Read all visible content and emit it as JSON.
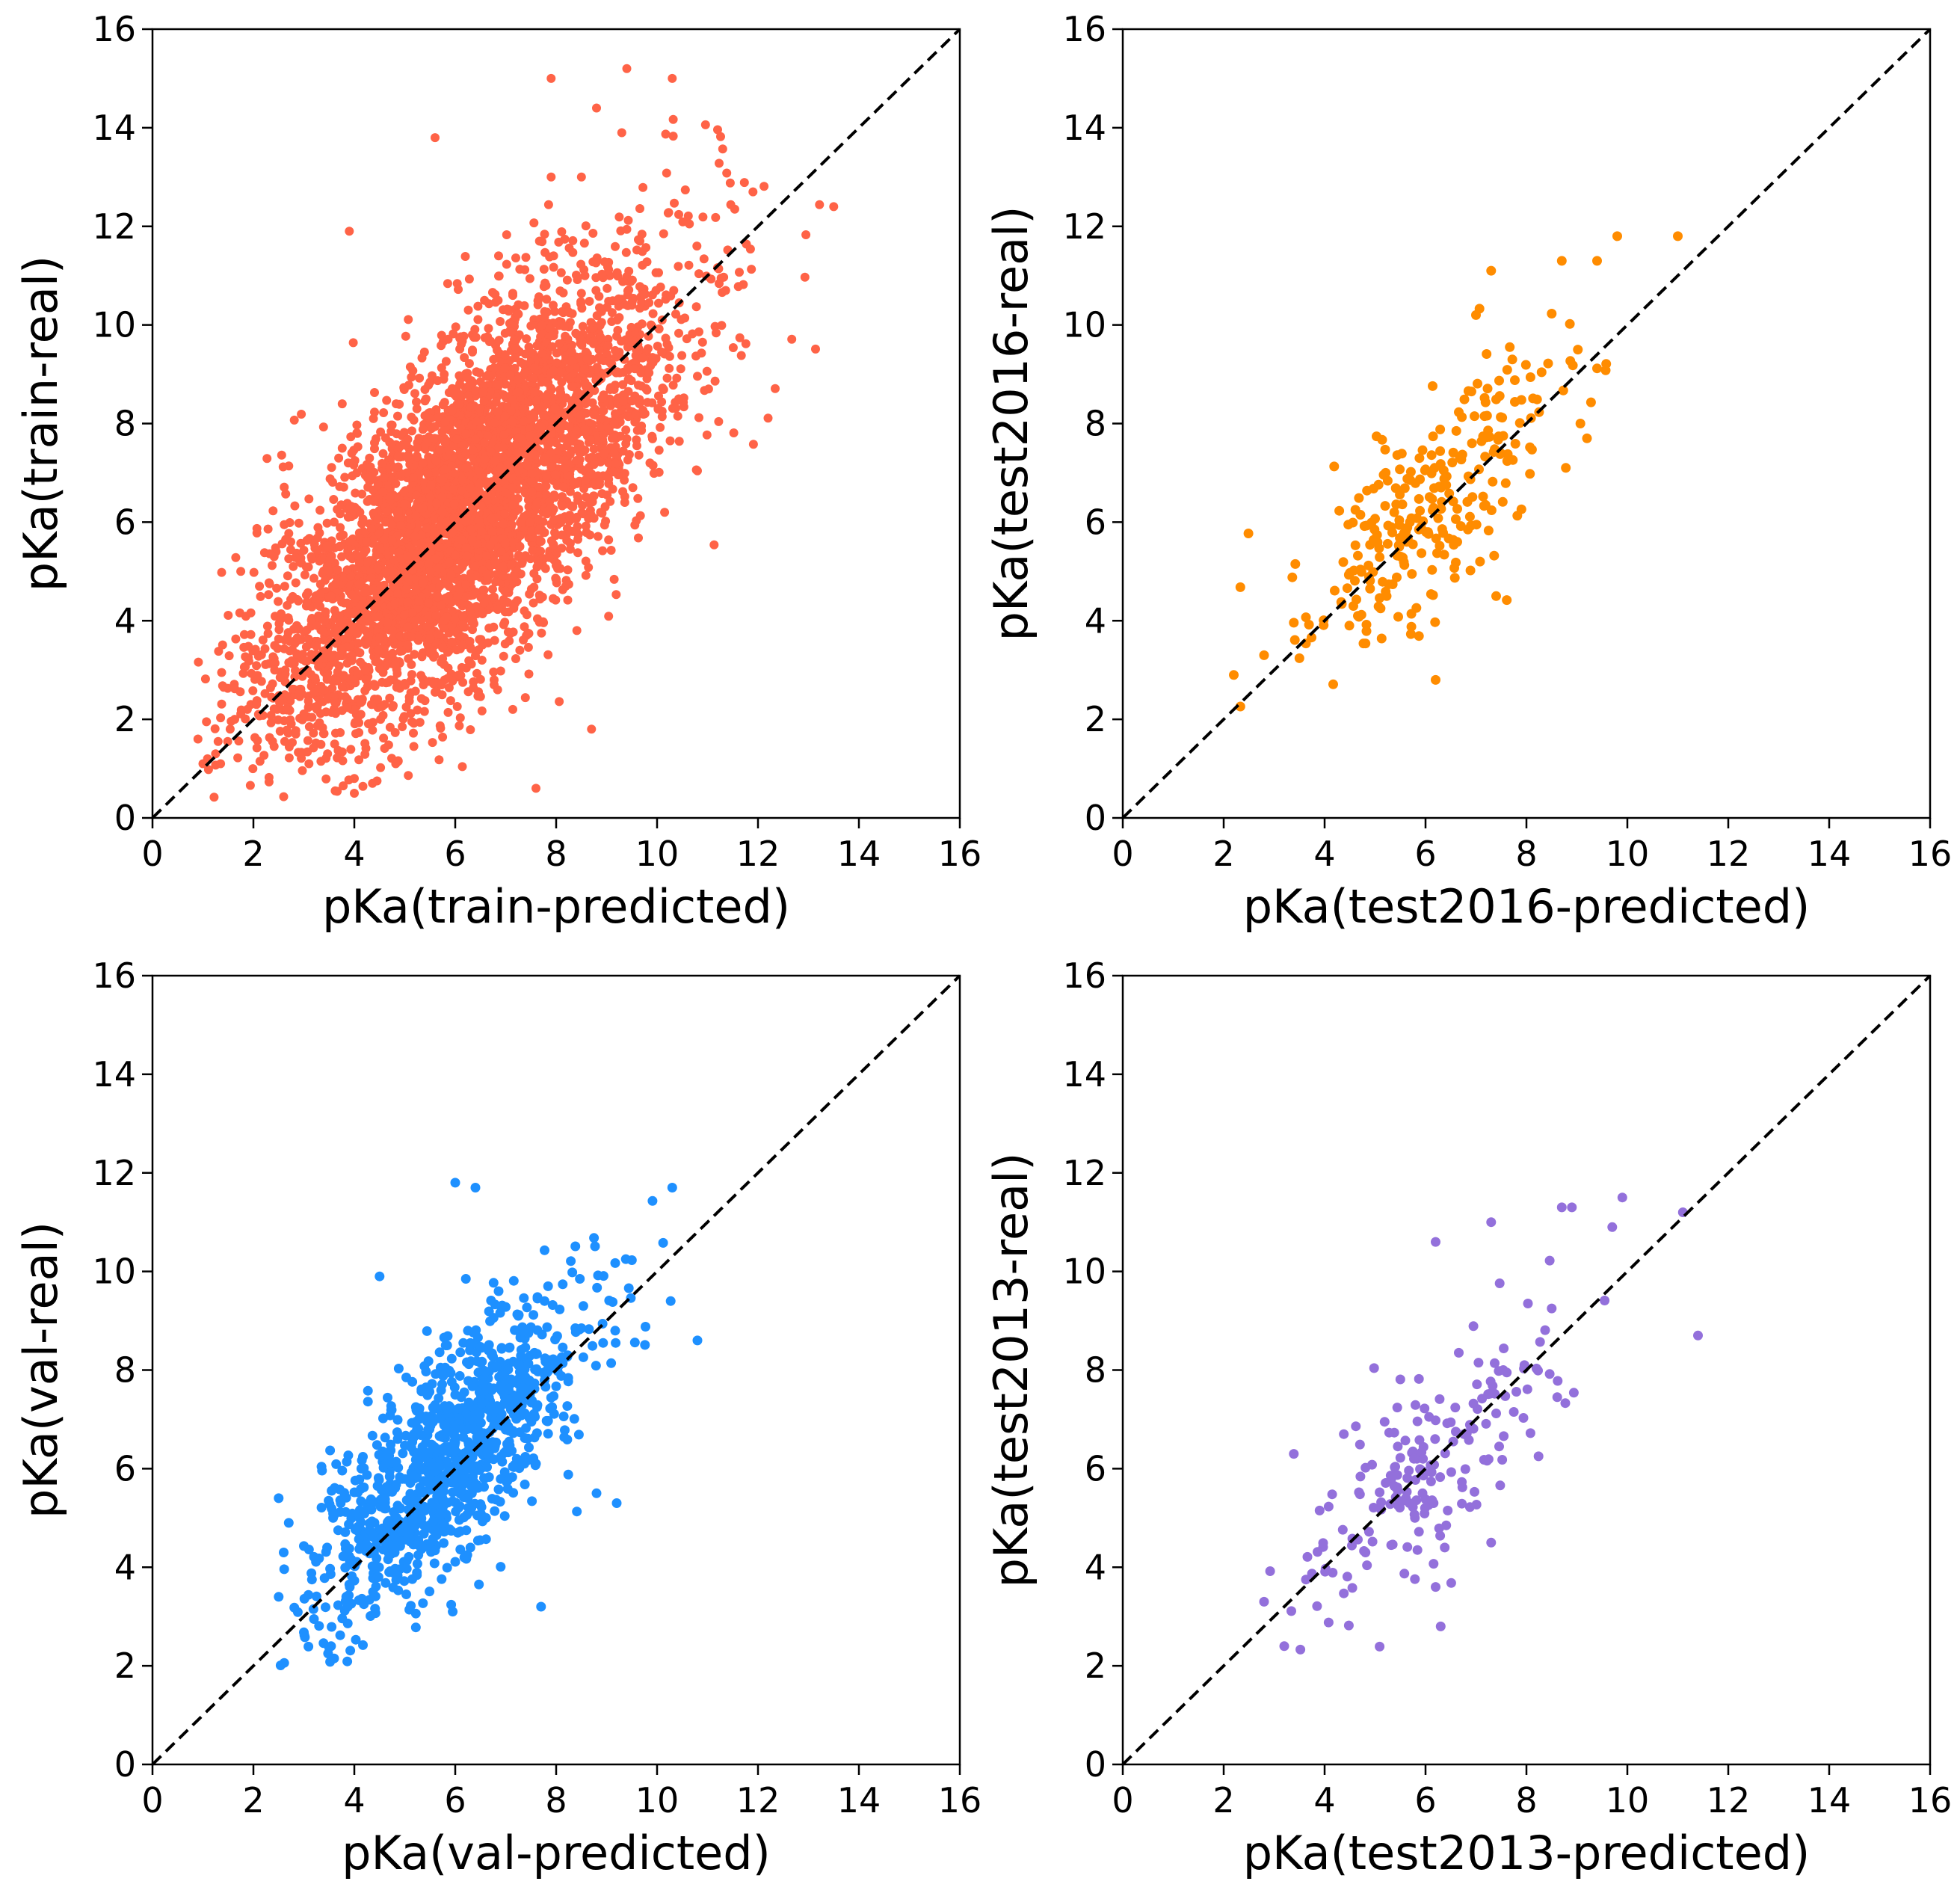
{
  "chart_data": [
    {
      "type": "scatter",
      "xlabel": "pKa(train-predicted)",
      "ylabel": "pKa(train-real)",
      "xlim": [
        0,
        16
      ],
      "ylim": [
        0,
        16
      ],
      "xticks": [
        "0",
        "2",
        "4",
        "6",
        "8",
        "10",
        "12",
        "14",
        "16"
      ],
      "yticks": [
        "0",
        "2",
        "4",
        "6",
        "8",
        "10",
        "12",
        "14",
        "16"
      ],
      "color": "#ff6347",
      "reference_line": {
        "style": "dashed",
        "color": "#000000",
        "from": [
          0,
          0
        ],
        "to": [
          16,
          16
        ]
      },
      "grid": false,
      "points": {
        "count": 4500,
        "x_range": [
          0.8,
          13.5
        ],
        "y_range": [
          0.4,
          15.2
        ],
        "x_center": 6.2,
        "y_center": 6.3
      },
      "outliers": [
        [
          9.4,
          15.2
        ],
        [
          10.3,
          15.0
        ],
        [
          7.9,
          15.0
        ],
        [
          8.8,
          14.4
        ],
        [
          9.3,
          13.9
        ],
        [
          5.6,
          13.8
        ],
        [
          7.9,
          13.0
        ],
        [
          8.5,
          13.0
        ],
        [
          13.5,
          12.4
        ],
        [
          11.9,
          12.7
        ],
        [
          3.9,
          11.9
        ],
        [
          7.6,
          0.6
        ],
        [
          8.7,
          1.8
        ],
        [
          0.9,
          1.6
        ],
        [
          1.0,
          1.1
        ],
        [
          4.0,
          0.5
        ]
      ]
    },
    {
      "type": "scatter",
      "xlabel": "pKa(test2016-predicted)",
      "ylabel": "pKa(test2016-real)",
      "xlim": [
        0,
        16
      ],
      "ylim": [
        0,
        16
      ],
      "xticks": [
        "0",
        "2",
        "4",
        "6",
        "8",
        "10",
        "12",
        "14",
        "16"
      ],
      "yticks": [
        "0",
        "2",
        "4",
        "6",
        "8",
        "10",
        "12",
        "14",
        "16"
      ],
      "color": "#ff8c00",
      "reference_line": {
        "style": "dashed",
        "color": "#000000",
        "from": [
          0,
          0
        ],
        "to": [
          16,
          16
        ]
      },
      "grid": false,
      "points": {
        "count": 285,
        "x_range": [
          2.2,
          11.0
        ],
        "y_range": [
          2.0,
          11.8
        ],
        "x_center": 6.0,
        "y_center": 6.3
      },
      "outliers": [
        [
          2.2,
          2.9
        ],
        [
          2.8,
          3.3
        ],
        [
          11.0,
          11.8
        ],
        [
          9.8,
          11.8
        ],
        [
          9.4,
          11.3
        ],
        [
          8.7,
          11.3
        ],
        [
          7.3,
          11.1
        ],
        [
          6.2,
          2.8
        ],
        [
          7.4,
          4.5
        ],
        [
          9.2,
          7.7
        ]
      ]
    },
    {
      "type": "scatter",
      "xlabel": "pKa(val-predicted)",
      "ylabel": "pKa(val-real)",
      "xlim": [
        0,
        16
      ],
      "ylim": [
        0,
        16
      ],
      "xticks": [
        "0",
        "2",
        "4",
        "6",
        "8",
        "10",
        "12",
        "14",
        "16"
      ],
      "yticks": [
        "0",
        "2",
        "4",
        "6",
        "8",
        "10",
        "12",
        "14",
        "16"
      ],
      "color": "#1e90ff",
      "reference_line": {
        "style": "dashed",
        "color": "#000000",
        "from": [
          0,
          0
        ],
        "to": [
          16,
          16
        ]
      },
      "grid": false,
      "points": {
        "count": 1100,
        "x_range": [
          2.5,
          10.8
        ],
        "y_range": [
          2.0,
          11.8
        ],
        "x_center": 5.9,
        "y_center": 6.2
      },
      "outliers": [
        [
          2.5,
          5.4
        ],
        [
          2.6,
          4.3
        ],
        [
          2.7,
          4.9
        ],
        [
          6.0,
          11.8
        ],
        [
          6.4,
          11.7
        ],
        [
          10.3,
          11.7
        ],
        [
          10.8,
          8.6
        ],
        [
          7.7,
          3.2
        ],
        [
          8.8,
          5.5
        ],
        [
          9.2,
          5.3
        ],
        [
          4.5,
          9.9
        ]
      ]
    },
    {
      "type": "scatter",
      "xlabel": "pKa(test2013-predicted)",
      "ylabel": "pKa(test2013-real)",
      "xlim": [
        0,
        16
      ],
      "ylim": [
        0,
        16
      ],
      "xticks": [
        "0",
        "2",
        "4",
        "6",
        "8",
        "10",
        "12",
        "14",
        "16"
      ],
      "yticks": [
        "0",
        "2",
        "4",
        "6",
        "8",
        "10",
        "12",
        "14",
        "16"
      ],
      "color": "#9370db",
      "reference_line": {
        "style": "dashed",
        "color": "#000000",
        "from": [
          0,
          0
        ],
        "to": [
          16,
          16
        ]
      },
      "grid": false,
      "points": {
        "count": 195,
        "x_range": [
          2.8,
          11.4
        ],
        "y_range": [
          2.1,
          11.5
        ],
        "x_center": 6.0,
        "y_center": 6.2
      },
      "outliers": [
        [
          2.8,
          3.3
        ],
        [
          3.2,
          2.4
        ],
        [
          11.4,
          8.7
        ],
        [
          9.9,
          11.5
        ],
        [
          9.7,
          10.9
        ],
        [
          11.1,
          11.2
        ],
        [
          8.7,
          11.3
        ],
        [
          8.9,
          11.3
        ],
        [
          7.3,
          11.0
        ],
        [
          6.2,
          10.6
        ],
        [
          6.3,
          2.8
        ],
        [
          7.3,
          4.5
        ]
      ]
    }
  ]
}
